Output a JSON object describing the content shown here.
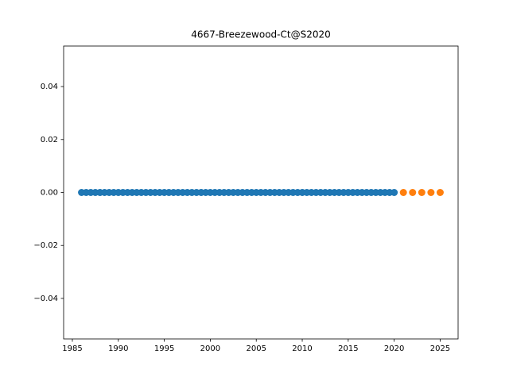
{
  "chart_data": {
    "type": "scatter",
    "title": "4667-Breezewood-Ct@S2020",
    "series": [
      {
        "color": "#1f77b4",
        "x": [
          1986,
          1986.5,
          1987,
          1987.5,
          1988,
          1988.5,
          1989,
          1989.5,
          1990,
          1990.5,
          1991,
          1991.5,
          1992,
          1992.5,
          1993,
          1993.5,
          1994,
          1994.5,
          1995,
          1995.5,
          1996,
          1996.5,
          1997,
          1997.5,
          1998,
          1998.5,
          1999,
          1999.5,
          2000,
          2000.5,
          2001,
          2001.5,
          2002,
          2002.5,
          2003,
          2003.5,
          2004,
          2004.5,
          2005,
          2005.5,
          2006,
          2006.5,
          2007,
          2007.5,
          2008,
          2008.5,
          2009,
          2009.5,
          2010,
          2010.5,
          2011,
          2011.5,
          2012,
          2012.5,
          2013,
          2013.5,
          2014,
          2014.5,
          2015,
          2015.5,
          2016,
          2016.5,
          2017,
          2017.5,
          2018,
          2018.5,
          2019,
          2019.5,
          2020
        ],
        "values": [
          0,
          0,
          0,
          0,
          0,
          0,
          0,
          0,
          0,
          0,
          0,
          0,
          0,
          0,
          0,
          0,
          0,
          0,
          0,
          0,
          0,
          0,
          0,
          0,
          0,
          0,
          0,
          0,
          0,
          0,
          0,
          0,
          0,
          0,
          0,
          0,
          0,
          0,
          0,
          0,
          0,
          0,
          0,
          0,
          0,
          0,
          0,
          0,
          0,
          0,
          0,
          0,
          0,
          0,
          0,
          0,
          0,
          0,
          0,
          0,
          0,
          0,
          0,
          0,
          0,
          0,
          0,
          0,
          0
        ]
      },
      {
        "color": "#ff7f0e",
        "x": [
          2021,
          2022,
          2023,
          2024,
          2025
        ],
        "values": [
          0,
          0,
          0,
          0,
          0
        ]
      }
    ],
    "xlim": [
      1984.05,
      2026.95
    ],
    "xticks": [
      1985,
      1990,
      1995,
      2000,
      2005,
      2010,
      2015,
      2020,
      2025
    ],
    "ylim": [
      -0.0553,
      0.0553
    ],
    "yticks": [
      {
        "value": -0.04,
        "label": "−0.04"
      },
      {
        "value": -0.02,
        "label": "−0.02"
      },
      {
        "value": 0,
        "label": "0.00"
      },
      0.02,
      0.04
    ]
  }
}
